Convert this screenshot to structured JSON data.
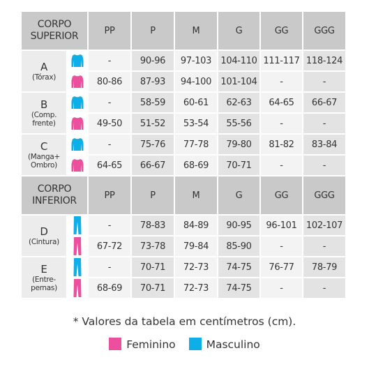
{
  "colors": {
    "feminino": "#ec4f9e",
    "masculino": "#0eaee8"
  },
  "upper": {
    "title_line1": "CORPO",
    "title_line2": "SUPERIOR",
    "sizes": [
      "PP",
      "P",
      "M",
      "G",
      "GG",
      "GGG"
    ],
    "groups": [
      {
        "letter": "A",
        "desc1": "(Tórax)",
        "desc2": "",
        "masc": [
          "-",
          "90-96",
          "97-103",
          "104-110",
          "111-117",
          "118-124"
        ],
        "fem": [
          "80-86",
          "87-93",
          "94-100",
          "101-104",
          "-",
          "-"
        ]
      },
      {
        "letter": "B",
        "desc1": "(Comp.",
        "desc2": "frente)",
        "masc": [
          "-",
          "58-59",
          "60-61",
          "62-63",
          "64-65",
          "66-67"
        ],
        "fem": [
          "49-50",
          "51-52",
          "53-54",
          "55-56",
          "-",
          "-"
        ]
      },
      {
        "letter": "C",
        "desc1": "(Manga+",
        "desc2": "Ombro)",
        "masc": [
          "-",
          "75-76",
          "77-78",
          "79-80",
          "81-82",
          "83-84"
        ],
        "fem": [
          "64-65",
          "66-67",
          "68-69",
          "70-71",
          "-",
          "-"
        ]
      }
    ]
  },
  "lower": {
    "title_line1": "CORPO",
    "title_line2": "INFERIOR",
    "sizes": [
      "PP",
      "P",
      "M",
      "G",
      "GG",
      "GGG"
    ],
    "groups": [
      {
        "letter": "D",
        "desc1": "(Cintura)",
        "desc2": "",
        "masc": [
          "-",
          "78-83",
          "84-89",
          "90-95",
          "96-101",
          "102-107"
        ],
        "fem": [
          "67-72",
          "73-78",
          "79-84",
          "85-90",
          "-",
          "-"
        ]
      },
      {
        "letter": "E",
        "desc1": "(Entre-",
        "desc2": "pernas)",
        "masc": [
          "-",
          "70-71",
          "72-73",
          "74-75",
          "76-77",
          "78-79"
        ],
        "fem": [
          "68-69",
          "70-71",
          "72-73",
          "74-75",
          "-",
          "-"
        ]
      }
    ]
  },
  "note": "* Valores da tabela em centímetros (cm).",
  "legend": {
    "feminino": "Feminino",
    "masculino": "Masculino"
  }
}
